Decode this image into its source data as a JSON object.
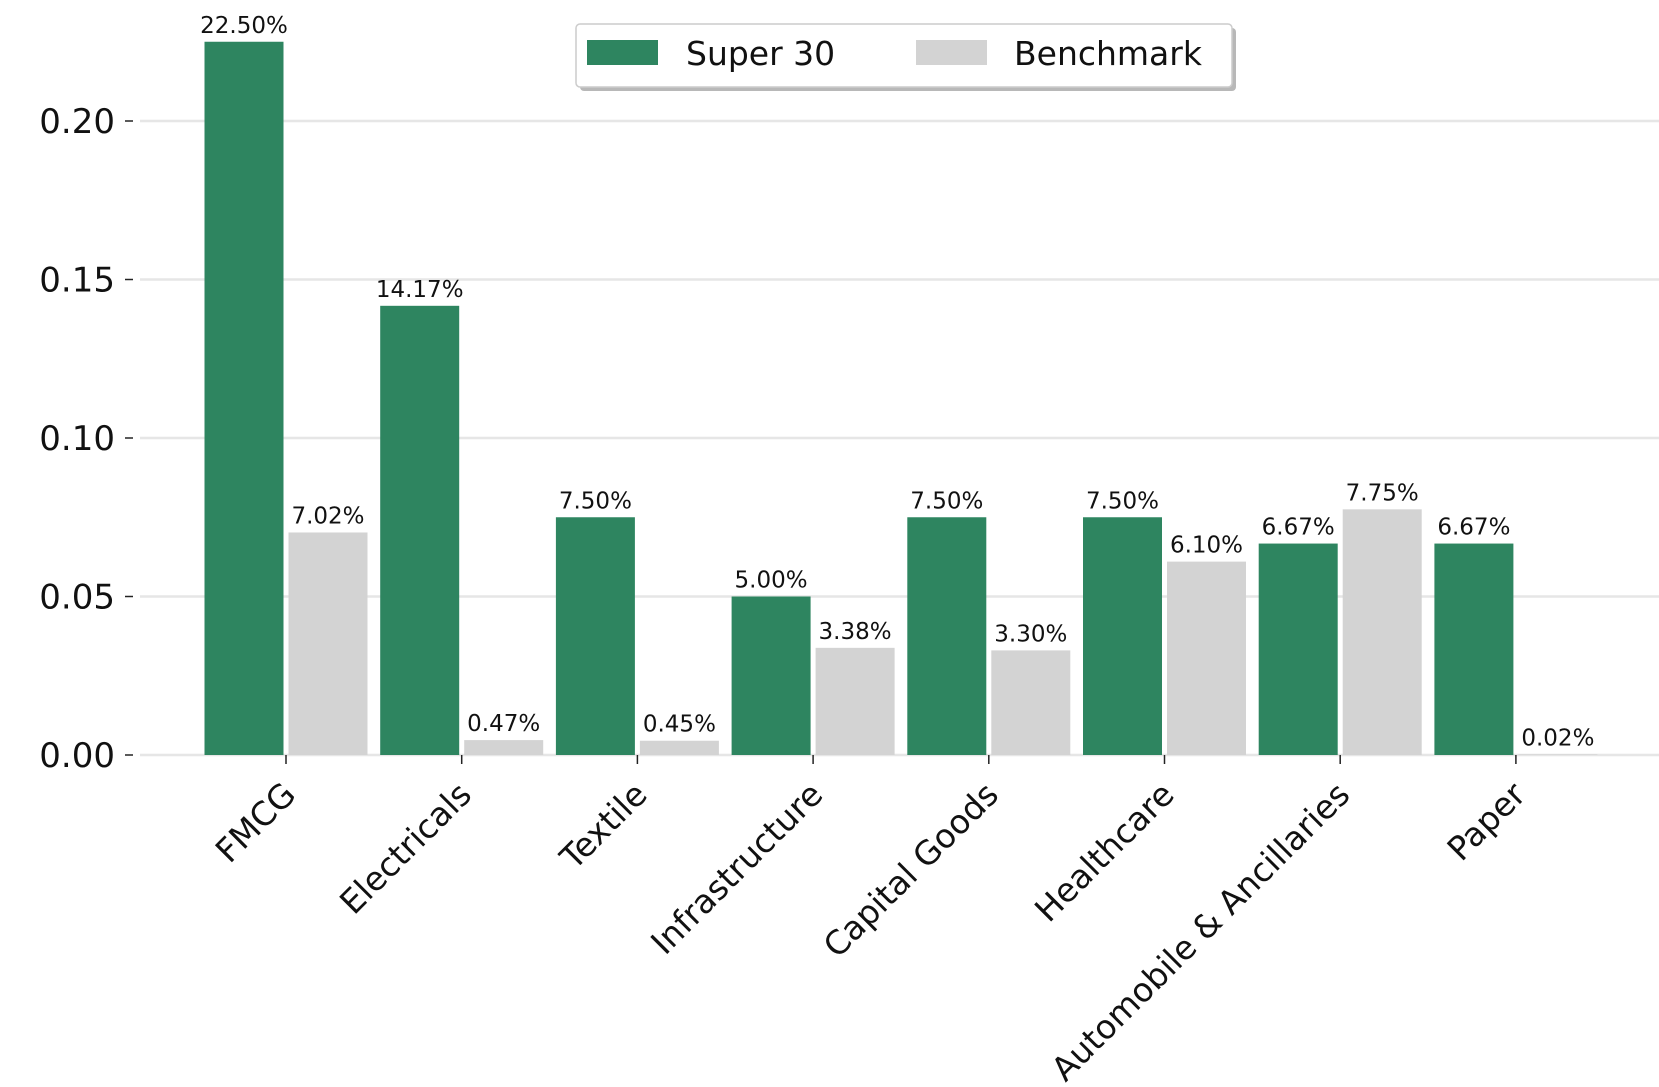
{
  "chart_data": {
    "type": "bar",
    "categories": [
      "FMCG",
      "Electricals",
      "Textile",
      "Infrastructure",
      "Capital Goods",
      "Healthcare",
      "Automobile & Ancillaries",
      "Paper"
    ],
    "series": [
      {
        "name": "Super 30",
        "color": "#2e8560",
        "values": [
          0.225,
          0.1417,
          0.075,
          0.05,
          0.075,
          0.075,
          0.0667,
          0.0667
        ],
        "labels": [
          "22.50%",
          "14.17%",
          "7.50%",
          "5.00%",
          "7.50%",
          "7.50%",
          "6.67%",
          "6.67%"
        ]
      },
      {
        "name": "Benchmark",
        "color": "#d3d3d3",
        "values": [
          0.0702,
          0.0047,
          0.0045,
          0.0338,
          0.033,
          0.061,
          0.0775,
          0.0002
        ],
        "labels": [
          "7.02%",
          "0.47%",
          "0.45%",
          "3.38%",
          "3.30%",
          "6.10%",
          "7.75%",
          "0.02%"
        ]
      }
    ],
    "yticks": [
      "0.00",
      "0.05",
      "0.10",
      "0.15",
      "0.20"
    ],
    "ylim": [
      0,
      0.225
    ],
    "grid": "horizontal",
    "legend_position": "top-center"
  }
}
